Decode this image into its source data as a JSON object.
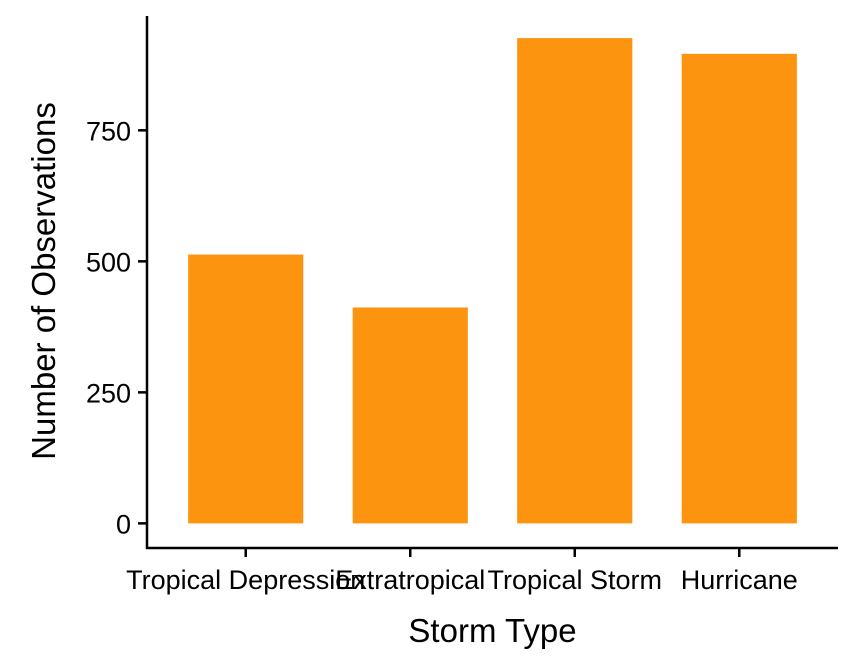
{
  "chart_data": {
    "type": "bar",
    "title": "",
    "xlabel": "Storm Type",
    "ylabel": "Number of Observations",
    "categories": [
      "Tropical Depression",
      "Extratropical",
      "Tropical Storm",
      "Hurricane"
    ],
    "values": [
      513,
      412,
      926,
      896
    ],
    "ylim": [
      -47,
      972
    ],
    "yticks": [
      0,
      250,
      500,
      750
    ],
    "grid": false,
    "legend": "none",
    "bar_color": "#FC9410",
    "axis_color": "#000000"
  }
}
